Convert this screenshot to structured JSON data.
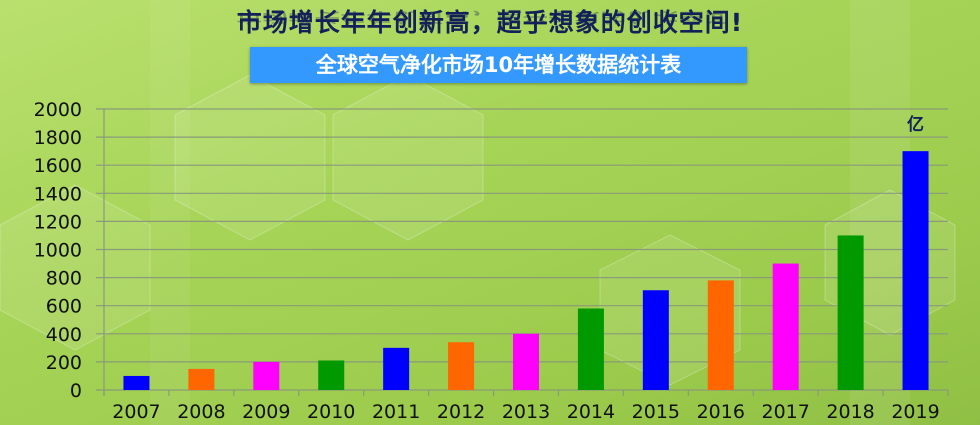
{
  "headline": "市场增长年年创新高，超乎想象的创收空间!",
  "chart_data": {
    "type": "bar",
    "title": "全球空气净化市场10年增长数据统计表",
    "unit": "亿",
    "categories": [
      "2007",
      "2008",
      "2009",
      "2010",
      "2011",
      "2012",
      "2013",
      "2014",
      "2015",
      "2016",
      "2017",
      "2018",
      "2019"
    ],
    "values": [
      100,
      150,
      200,
      210,
      300,
      340,
      400,
      580,
      710,
      780,
      900,
      1100,
      1700
    ],
    "bar_colors": [
      "#0000ff",
      "#ff6600",
      "#ff00ff",
      "#009900",
      "#0000ff",
      "#ff6600",
      "#ff00ff",
      "#009900",
      "#0000ff",
      "#ff6600",
      "#ff00ff",
      "#009900",
      "#0000ff"
    ],
    "ylim": [
      0,
      2000
    ],
    "yticks": [
      0,
      200,
      400,
      600,
      800,
      1000,
      1200,
      1400,
      1600,
      1800,
      2000
    ],
    "grid": true,
    "legend": "none"
  },
  "colors": {
    "headline": "#13205a",
    "title_box": "#3399ff",
    "gridline": "#8a9a7a"
  }
}
